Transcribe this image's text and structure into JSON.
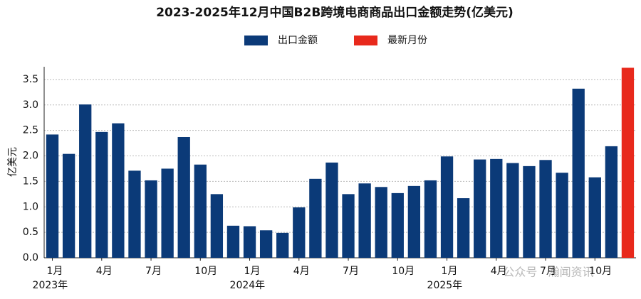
{
  "chart_data": {
    "type": "bar",
    "title": "2023-2025年12月中国B2B跨境电商商品出口金额走势(亿美元)",
    "y_label": "亿美元",
    "categories": [
      "1月",
      null,
      null,
      "4月",
      null,
      null,
      "7月",
      null,
      null,
      "10月",
      null,
      null,
      "1月",
      null,
      null,
      "4月",
      null,
      null,
      "7月",
      null,
      null,
      "10月",
      null,
      null,
      "1月",
      null,
      null,
      "4月",
      null,
      null,
      "7月",
      null,
      null,
      "10月",
      null,
      null
    ],
    "years": [
      "2023年",
      "2024年",
      "2025年"
    ],
    "series": [
      {
        "name": "出口金额",
        "color": "#0b3a78",
        "values": [
          2.42,
          2.04,
          3.01,
          2.47,
          2.64,
          1.71,
          1.52,
          1.75,
          2.37,
          1.83,
          1.25,
          0.63,
          0.62,
          0.54,
          0.49,
          0.99,
          1.55,
          1.87,
          1.25,
          1.46,
          1.39,
          1.27,
          1.41,
          1.52,
          1.99,
          1.17,
          1.93,
          1.94,
          1.86,
          1.8,
          1.92,
          1.67,
          3.32,
          1.58,
          2.19,
          null
        ]
      },
      {
        "name": "最新月份",
        "color": "#e8291c",
        "values": [
          null,
          null,
          null,
          null,
          null,
          null,
          null,
          null,
          null,
          null,
          null,
          null,
          null,
          null,
          null,
          null,
          null,
          null,
          null,
          null,
          null,
          null,
          null,
          null,
          null,
          null,
          null,
          null,
          null,
          null,
          null,
          null,
          null,
          null,
          null,
          3.73
        ]
      }
    ],
    "ylim": [
      0,
      3.75
    ],
    "yticks": [
      {
        "value": 0,
        "label": "0.0"
      },
      0.5,
      {
        "value": 1,
        "label": "1.0"
      },
      1.5,
      {
        "value": 2,
        "label": "2.0"
      },
      2.5,
      {
        "value": 3,
        "label": "3.0"
      },
      3.5
    ],
    "grid": true,
    "watermark": "公众号 · 瀚闻资讯"
  }
}
